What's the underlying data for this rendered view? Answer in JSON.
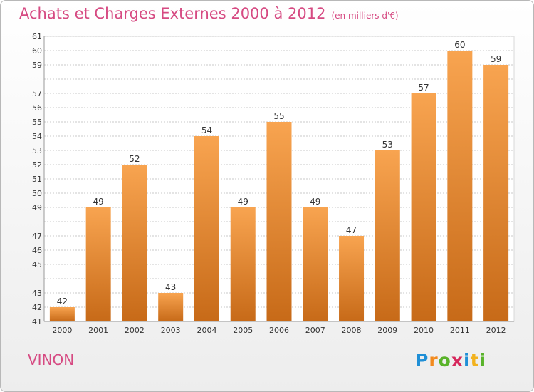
{
  "title": "Achats et Charges Externes 2000 à 2012",
  "subtitle": "(en milliers d'€)",
  "commune": "VINON",
  "logo": {
    "letters": [
      "P",
      "r",
      "o",
      "x",
      "i",
      "t",
      "i"
    ],
    "colors": [
      "#1f8fd6",
      "#f28a1e",
      "#59b32a",
      "#d6285c",
      "#1f8fd6",
      "#f2b21e",
      "#59b32a"
    ]
  },
  "colors": {
    "title": "#d64a82",
    "bar_top": "#f8a450",
    "bar_bottom": "#c76a18",
    "grid": "#c8c8c8",
    "text": "#333333"
  },
  "chart_data": {
    "type": "bar",
    "categories": [
      "2000",
      "2001",
      "2002",
      "2003",
      "2004",
      "2005",
      "2006",
      "2007",
      "2008",
      "2009",
      "2010",
      "2011",
      "2012"
    ],
    "values": [
      42,
      49,
      52,
      43,
      54,
      49,
      55,
      49,
      47,
      53,
      57,
      60,
      59
    ],
    "ylim": [
      41,
      61
    ],
    "yticks": [
      41,
      42,
      43,
      45,
      46,
      47,
      49,
      50,
      51,
      52,
      53,
      54,
      55,
      56,
      57,
      59,
      60,
      61
    ],
    "grid": true,
    "data_labels": true
  }
}
